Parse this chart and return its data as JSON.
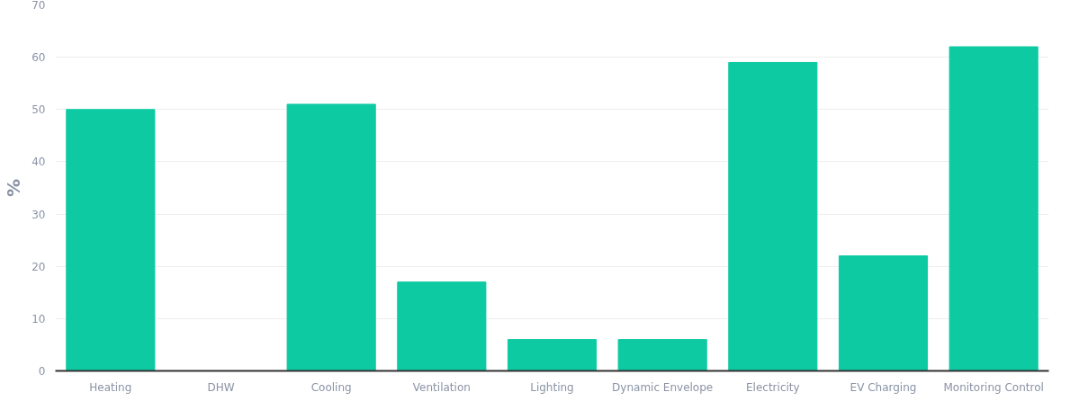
{
  "chart_data": {
    "type": "bar",
    "ylabel": "%",
    "categories": [
      "Heating",
      "DHW",
      "Cooling",
      "Ventilation",
      "Lighting",
      "Dynamic Envelope",
      "Electricity",
      "EV Charging",
      "Monitoring Control"
    ],
    "values": [
      50,
      0,
      51,
      17,
      6,
      6,
      59,
      22,
      62
    ],
    "color": "#0dcaa2",
    "ylim": [
      0,
      70
    ],
    "yticks": [
      0,
      10,
      20,
      30,
      40,
      50,
      60,
      70
    ],
    "grid": "y"
  }
}
